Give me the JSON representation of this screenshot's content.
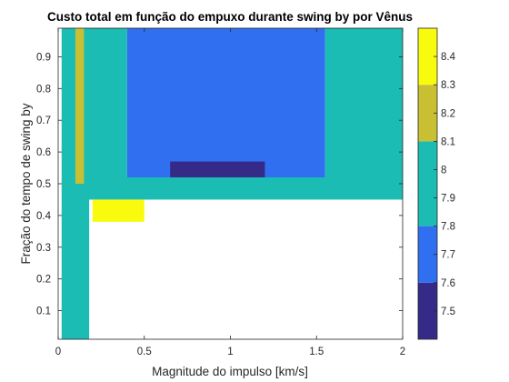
{
  "chart_data": {
    "type": "heatmap",
    "title": "Custo total em função do empuxo durante swing by por Vênus",
    "xlabel": "Magnitude do impulso [km/s]",
    "ylabel": "Fração do tempo de swing by",
    "xlim": [
      0,
      2
    ],
    "ylim": [
      0.01,
      0.99
    ],
    "xticks": [
      "0",
      "0.5",
      "1",
      "1.5",
      "2"
    ],
    "yticks": [
      "0.1",
      "0.2",
      "0.3",
      "0.4",
      "0.5",
      "0.6",
      "0.7",
      "0.8",
      "0.9"
    ],
    "colorbar": {
      "clim": [
        7.4,
        8.5
      ],
      "ticks": [
        "7.5",
        "7.6",
        "7.7",
        "7.8",
        "7.9",
        "8",
        "8.1",
        "8.2",
        "8.3",
        "8.4"
      ],
      "levels": [
        {
          "from": 7.4,
          "to": 7.6,
          "color": "#352a87"
        },
        {
          "from": 7.6,
          "to": 7.8,
          "color": "#2f6ff0"
        },
        {
          "from": 7.8,
          "to": 8.1,
          "color": "#1bbcb3"
        },
        {
          "from": 8.1,
          "to": 8.3,
          "color": "#c8c032"
        },
        {
          "from": 8.3,
          "to": 8.5,
          "color": "#f9fb0e"
        }
      ]
    },
    "regions": [
      {
        "x_min": 0.02,
        "x_max": 0.18,
        "y_min": 0.01,
        "y_max": 0.99,
        "value": 8.0
      },
      {
        "x_min": 0.1,
        "x_max": 0.15,
        "y_min": 0.5,
        "y_max": 0.99,
        "value": 8.2
      },
      {
        "x_min": 0.15,
        "x_max": 0.4,
        "y_min": 0.52,
        "y_max": 0.99,
        "value": 7.95
      },
      {
        "x_min": 0.4,
        "x_max": 1.55,
        "y_min": 0.5,
        "y_max": 0.99,
        "value": 7.7
      },
      {
        "x_min": 1.55,
        "x_max": 2.0,
        "y_min": 0.52,
        "y_max": 0.99,
        "value": 7.9
      },
      {
        "x_min": 0.65,
        "x_max": 1.2,
        "y_min": 0.5,
        "y_max": 0.57,
        "value": 7.5
      },
      {
        "x_min": 0.15,
        "x_max": 2.0,
        "y_min": 0.45,
        "y_max": 0.52,
        "value": 8.05
      },
      {
        "x_min": 0.2,
        "x_max": 0.5,
        "y_min": 0.38,
        "y_max": 0.45,
        "value": 8.3
      }
    ]
  }
}
